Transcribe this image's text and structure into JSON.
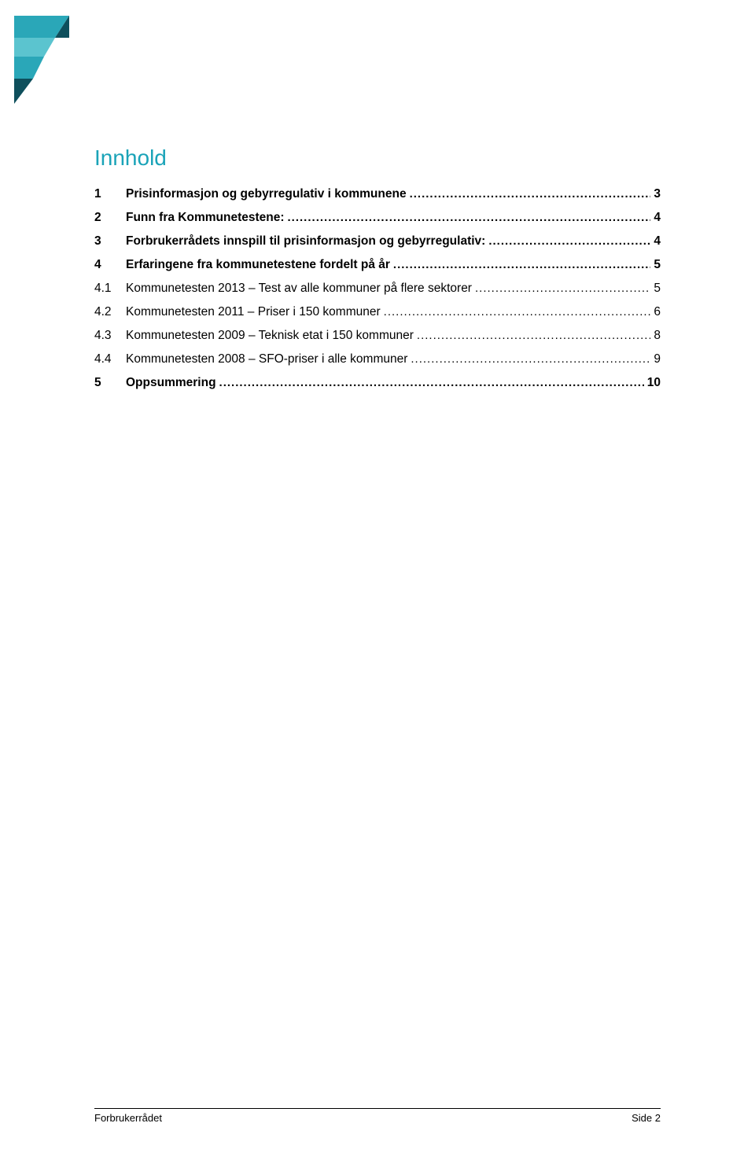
{
  "title": {
    "text": "Innhold",
    "color": "#1aa3b8",
    "fontsize": 28
  },
  "toc": [
    {
      "num": "1",
      "label": "Prisinformasjon og gebyrregulativ i kommunene",
      "page": "3",
      "bold": true
    },
    {
      "num": "2",
      "label": "Funn fra Kommunetestene:",
      "page": "4",
      "bold": true
    },
    {
      "num": "3",
      "label": "Forbrukerrådets innspill til prisinformasjon og gebyrregulativ:",
      "page": "4",
      "bold": true
    },
    {
      "num": "4",
      "label": "Erfaringene fra kommunetestene fordelt på år",
      "page": "5",
      "bold": true
    },
    {
      "num": "4.1",
      "label": "Kommunetesten 2013 – Test av alle kommuner på flere sektorer",
      "page": "5",
      "bold": false
    },
    {
      "num": "4.2",
      "label": "Kommunetesten 2011 – Priser i 150 kommuner",
      "page": "6",
      "bold": false
    },
    {
      "num": "4.3",
      "label": "Kommunetesten 2009 – Teknisk etat i 150 kommuner",
      "page": "8",
      "bold": false
    },
    {
      "num": "4.4",
      "label": "Kommunetesten 2008 – SFO-priser i alle kommuner",
      "page": "9",
      "bold": false
    },
    {
      "num": "5",
      "label": "Oppsummering",
      "page": "10",
      "bold": true
    }
  ],
  "footer": {
    "left": "Forbrukerrådet",
    "right": "Side 2"
  },
  "logo": {
    "colors": {
      "teal_dark": "#0e4f5c",
      "teal_mid": "#2aa7b8",
      "teal_light": "#5bc4cf"
    }
  }
}
